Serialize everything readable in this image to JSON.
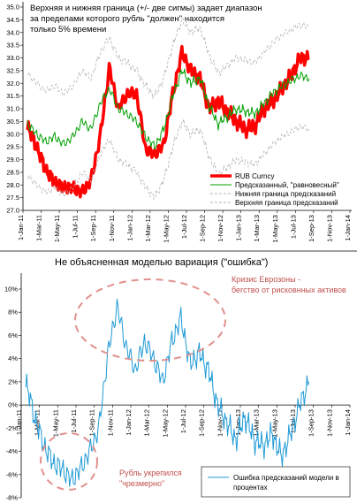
{
  "chart_data": [
    {
      "type": "line",
      "note": [
        "Верхняя и нижняя граница (+/- две сигмы) задает диапазон",
        "за пределами которого рубль \"должен\" находится",
        "только 5% времени"
      ],
      "ylim": [
        27.0,
        35.0
      ],
      "ytick_labels": [
        "27.0",
        "27.5",
        "28.0",
        "28.5",
        "29.0",
        "29.5",
        "30.0",
        "30.5",
        "31.0",
        "31.5",
        "32.0",
        "32.5",
        "33.0",
        "33.5",
        "34.0",
        "34.5",
        "35.0"
      ],
      "xtick_labels": [
        "1-Jan-11",
        "1-Mar-11",
        "1-May-11",
        "1-Jul-11",
        "1-Sep-11",
        "1-Nov-11",
        "1-Jan-12",
        "1-Mar-12",
        "1-May-12",
        "1-Jul-12",
        "1-Sep-12",
        "1-Nov-12",
        "1-Jan-13",
        "1-Mar-13",
        "1-May-13",
        "1-Jul-13",
        "1-Sep-13",
        "1-Nov-13",
        "1-Jan-14"
      ],
      "x": [
        "2011-01",
        "2011-02",
        "2011-03",
        "2011-04",
        "2011-05",
        "2011-06",
        "2011-07",
        "2011-08",
        "2011-09",
        "2011-10",
        "2011-11",
        "2011-12",
        "2012-01",
        "2012-02",
        "2012-03",
        "2012-04",
        "2012-05",
        "2012-06",
        "2012-07",
        "2012-08",
        "2012-09",
        "2012-10",
        "2012-11",
        "2012-12",
        "2013-01",
        "2013-02",
        "2013-03",
        "2013-04",
        "2013-05",
        "2013-06",
        "2013-07",
        "2013-08"
      ],
      "legend": [
        "RUB Curncy",
        "Предсказанный, \"равновесный\"",
        "Нижняя граница предсказаний",
        "Верхняя граница предсказаний"
      ],
      "legend_position": "bottom-right",
      "series": [
        {
          "name": "RUB Curncy",
          "color": "#ff0000",
          "values": [
            30.3,
            29.5,
            28.6,
            28.1,
            27.9,
            27.9,
            27.7,
            28.2,
            29.9,
            32.6,
            31.0,
            31.6,
            31.6,
            29.4,
            29.2,
            29.6,
            31.6,
            33.2,
            32.5,
            32.2,
            31.0,
            31.3,
            30.9,
            30.5,
            30.2,
            30.3,
            31.0,
            31.3,
            31.8,
            32.3,
            33.0,
            33.0
          ]
        },
        {
          "name": "Предсказанный, \"равновесный\"",
          "color": "#00a000",
          "values": [
            30.4,
            30.0,
            29.7,
            29.9,
            29.6,
            29.9,
            30.5,
            30.2,
            31.2,
            31.8,
            31.0,
            30.8,
            30.5,
            29.9,
            29.5,
            30.2,
            31.5,
            32.5,
            32.0,
            32.2,
            31.1,
            30.4,
            30.7,
            31.0,
            30.9,
            30.8,
            31.2,
            31.6,
            31.9,
            32.1,
            32.3,
            32.2
          ]
        },
        {
          "name": "Нижняя граница предсказаний",
          "color": "#b0b0b0",
          "values": [
            28.4,
            28.0,
            27.7,
            27.9,
            27.6,
            27.9,
            28.5,
            28.2,
            29.2,
            29.8,
            29.0,
            28.8,
            28.5,
            27.9,
            27.5,
            28.2,
            29.5,
            30.5,
            30.0,
            30.2,
            29.1,
            28.4,
            28.7,
            29.0,
            28.9,
            28.8,
            29.2,
            29.6,
            29.9,
            30.1,
            30.3,
            30.2
          ]
        },
        {
          "name": "Верхняя граница предсказаний",
          "color": "#b0b0b0",
          "values": [
            32.4,
            32.0,
            31.7,
            31.9,
            31.6,
            31.9,
            32.5,
            32.2,
            33.2,
            33.8,
            33.0,
            32.8,
            32.5,
            31.9,
            31.5,
            32.2,
            33.5,
            34.5,
            34.0,
            34.2,
            33.1,
            32.4,
            32.7,
            33.0,
            32.9,
            32.8,
            33.2,
            33.6,
            33.9,
            34.1,
            34.3,
            34.2
          ]
        }
      ]
    },
    {
      "type": "line",
      "title": "Не объясненная моделью вариация (\"ошибка\")",
      "ylim": [
        -8,
        10
      ],
      "ytick_labels": [
        "-8%",
        "-6%",
        "-4%",
        "-2%",
        "0%",
        "2%",
        "4%",
        "6%",
        "8%",
        "10%"
      ],
      "xtick_labels": [
        "1-Jan-11",
        "1-Mar-11",
        "1-May-11",
        "1-Jul-11",
        "1-Sep-11",
        "1-Nov-11",
        "1-Jan-12",
        "1-Mar-12",
        "1-May-12",
        "1-Jul-12",
        "1-Sep-12",
        "1-Nov-12",
        "1-Jan-13",
        "1-Mar-13",
        "1-May-13",
        "1-Jul-13",
        "1-Sep-13",
        "1-Nov-13",
        "1-Jan-14"
      ],
      "x": [
        "2011-01",
        "2011-02",
        "2011-03",
        "2011-04",
        "2011-05",
        "2011-06",
        "2011-07",
        "2011-08",
        "2011-09",
        "2011-10",
        "2011-11",
        "2011-12",
        "2012-01",
        "2012-02",
        "2012-03",
        "2012-04",
        "2012-05",
        "2012-06",
        "2012-07",
        "2012-08",
        "2012-09",
        "2012-10",
        "2012-11",
        "2012-12",
        "2013-01",
        "2013-02",
        "2013-03",
        "2013-04",
        "2013-05",
        "2013-06",
        "2013-07",
        "2013-08"
      ],
      "series": [
        {
          "name": "Ошибка предсказаний модели в процентах",
          "color": "#1f9ad6",
          "values": [
            2.0,
            -1.2,
            -3.5,
            -5.0,
            -5.5,
            -6.5,
            -5.5,
            -4.0,
            -2.0,
            4.5,
            8.5,
            5.0,
            3.0,
            5.5,
            4.0,
            2.0,
            5.5,
            7.5,
            3.5,
            4.5,
            3.0,
            0.0,
            -1.5,
            -3.0,
            -1.0,
            -3.0,
            -3.5,
            -2.5,
            -4.5,
            -2.5,
            0.0,
            2.0
          ]
        }
      ],
      "annotations": [
        {
          "text": [
            "Кризис Еврозоны -",
            "бегство от рисковнных активов"
          ],
          "color": "#c0504d"
        },
        {
          "text": [
            "Рубль укрепился",
            "\"чрезмерно\""
          ],
          "color": "#c0504d"
        }
      ],
      "legend": [
        "Ошибка предсказаний модели в",
        "процентах"
      ],
      "legend_position": "bottom-right"
    }
  ]
}
